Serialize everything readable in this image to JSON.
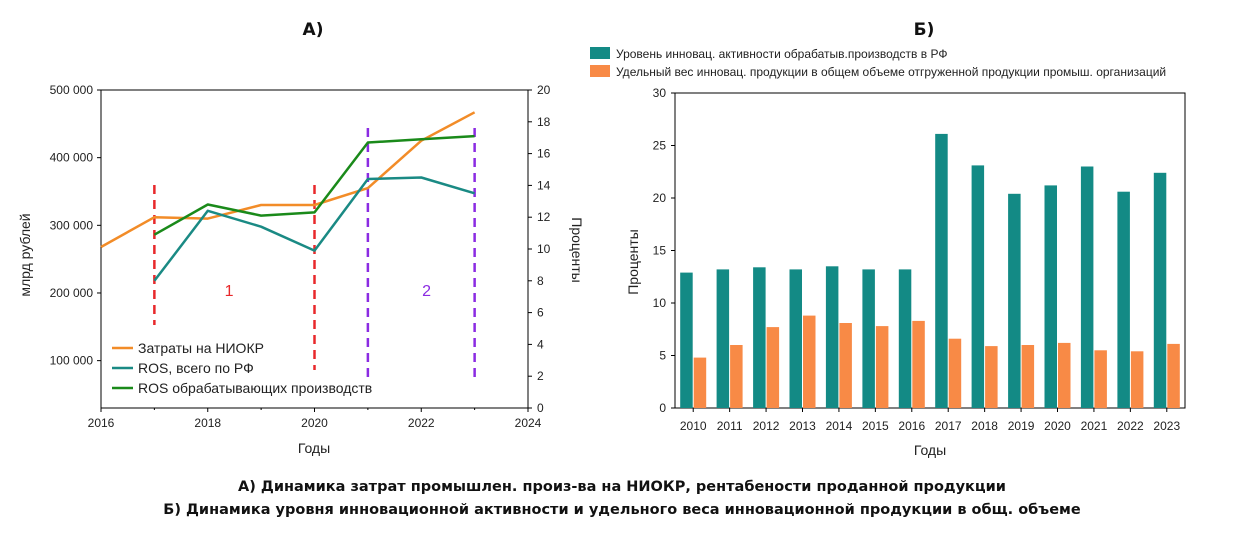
{
  "chart_data": [
    {
      "type": "line",
      "panel_title": "А)",
      "xlabel": "Годы",
      "ylabel_left": "млрд рублей",
      "ylabel_right": "Проценты",
      "xlim": [
        2016,
        2024
      ],
      "ylim_left": [
        30000,
        500000
      ],
      "ylim_right": [
        0,
        20
      ],
      "x_ticks": [
        "2016",
        "2018",
        "2020",
        "2022",
        "2024"
      ],
      "y_left_ticks": [
        "100 000",
        "200 000",
        "300 000",
        "400 000",
        "500 000"
      ],
      "y_right_ticks": [
        "0",
        "2",
        "4",
        "6",
        "8",
        "10",
        "12",
        "14",
        "16",
        "18",
        "20"
      ],
      "series": [
        {
          "name": "Затраты на НИОКР",
          "axis": "left",
          "color": "#f28c28",
          "x": [
            2016,
            2017,
            2018,
            2019,
            2020,
            2021,
            2022,
            2023
          ],
          "values": [
            268000,
            312000,
            310000,
            330000,
            330000,
            355000,
            425000,
            467000
          ]
        },
        {
          "name": "ROS, всего по РФ",
          "axis": "right",
          "color": "#1a8a84",
          "x": [
            2017,
            2018,
            2019,
            2020,
            2021,
            2022,
            2023
          ],
          "values": [
            8.0,
            12.4,
            11.4,
            9.9,
            14.4,
            14.5,
            13.5
          ]
        },
        {
          "name": "ROS обрабатывающих производств",
          "axis": "right",
          "color": "#1a8a1a",
          "x": [
            2017,
            2018,
            2019,
            2020,
            2021,
            2022,
            2023
          ],
          "values": [
            10.9,
            12.8,
            12.1,
            12.3,
            16.7,
            16.9,
            17.1
          ]
        }
      ],
      "markers": [
        {
          "x": 2017,
          "label": "",
          "color": "#e8282b"
        },
        {
          "x": 2020,
          "label": "",
          "color": "#e8282b"
        },
        {
          "x": 2021,
          "label": "",
          "color": "#8b2be2"
        },
        {
          "x": 2023,
          "label": "",
          "color": "#8b2be2"
        }
      ],
      "period_labels": [
        {
          "text": "1",
          "x": 2018.4,
          "color": "#e8282b"
        },
        {
          "text": "2",
          "x": 2022.1,
          "color": "#8b2be2"
        }
      ],
      "legend_position": "bottom-left"
    },
    {
      "type": "bar",
      "panel_title": "Б)",
      "xlabel": "Годы",
      "ylabel": "Проценты",
      "ylim": [
        0,
        30
      ],
      "y_ticks": [
        "0",
        "5",
        "10",
        "15",
        "20",
        "25",
        "30"
      ],
      "categories": [
        "2010",
        "2011",
        "2012",
        "2013",
        "2014",
        "2015",
        "2016",
        "2017",
        "2018",
        "2019",
        "2020",
        "2021",
        "2022",
        "2023"
      ],
      "series": [
        {
          "name": "Уровень инновац. активности обрабатыв.производств в РФ",
          "color": "#138a85",
          "values": [
            12.9,
            13.2,
            13.4,
            13.2,
            13.5,
            13.2,
            13.2,
            26.1,
            23.1,
            20.4,
            21.2,
            23.0,
            20.6,
            22.4
          ]
        },
        {
          "name": "Удельный вес инновац. продукции в общем объеме отгруженной продукции промыш. организаций",
          "color": "#f88a46",
          "values": [
            4.8,
            6.0,
            7.7,
            8.8,
            8.1,
            7.8,
            8.3,
            6.6,
            5.9,
            6.0,
            6.2,
            5.5,
            5.4,
            6.1
          ]
        }
      ],
      "legend_position": "top"
    }
  ],
  "caption": {
    "line1": "А) Динамика затрат промышлен. произ-ва на НИОКР, рентабености проданной продукции",
    "line2": "Б) Динамика уровня инновационной активности и удельного веса инновационной продукции в общ. объеме"
  }
}
